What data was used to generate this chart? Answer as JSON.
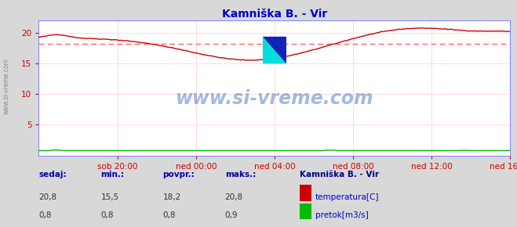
{
  "title": "Kamniška B. - Vir",
  "title_color": "#0000cc",
  "bg_color": "#d8d8d8",
  "plot_bg_color": "#ffffff",
  "grid_color": "#ffcccc",
  "watermark_text": "www.si-vreme.com",
  "watermark_color": "#3366bb",
  "temp_avg": 18.2,
  "temp_min": 15.5,
  "temp_max": 20.8,
  "flow_avg": 0.8,
  "flow_min": 0.8,
  "flow_max": 0.9,
  "xtick_labels": [
    "sob 20:00",
    "ned 00:00",
    "ned 04:00",
    "ned 08:00",
    "ned 12:00",
    "ned 16:00"
  ],
  "temp_line_color": "#cc0000",
  "avg_line_color": "#ff6666",
  "flow_line_color": "#00bb00",
  "axis_spine_color": "#8888ff",
  "tick_color": "#cc0000",
  "legend_title": "Kamniška B. - Vir",
  "legend_label1": "temperatura[C]",
  "legend_label2": "pretok[m3/s]",
  "sedaj_label": "sedaj:",
  "min_label": "min.:",
  "povpr_label": "povpr.:",
  "maks_label": "maks.:",
  "col_values_temp": [
    "20,8",
    "15,5",
    "18,2",
    "20,8"
  ],
  "col_values_flow": [
    "0,8",
    "0,8",
    "0,8",
    "0,9"
  ],
  "left_watermark": "www.si-vreme.com"
}
